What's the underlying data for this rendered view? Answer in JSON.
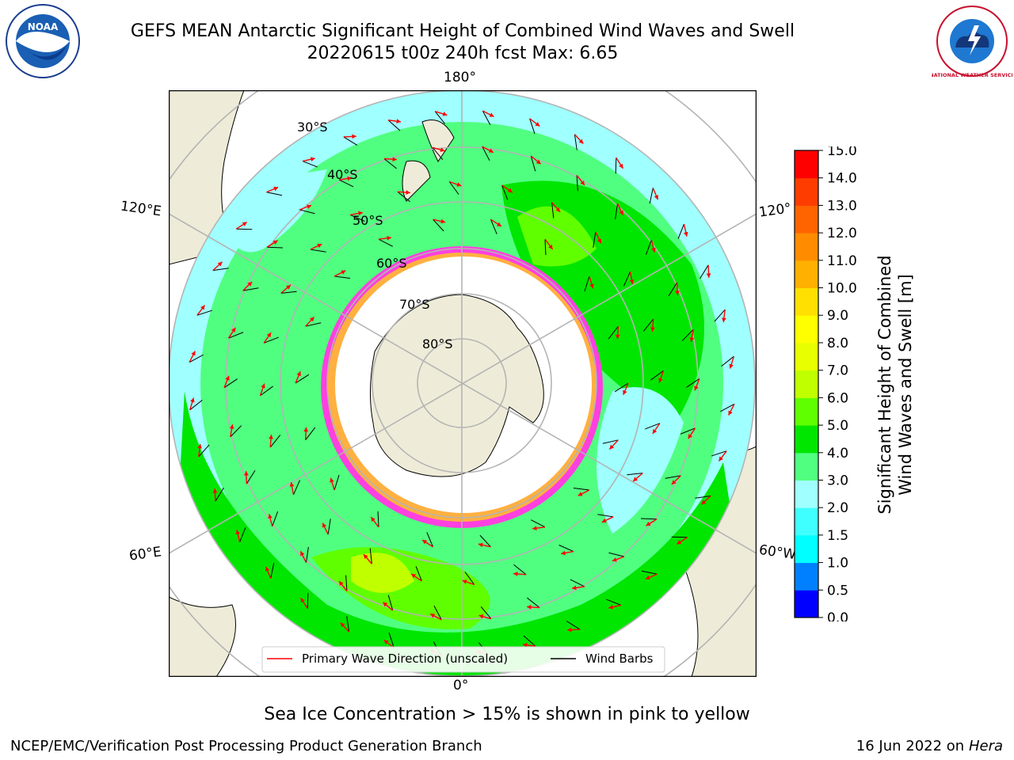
{
  "header": {
    "title_line1": "GEFS MEAN Antarctic Significant Height of Combined Wind Waves and Swell",
    "title_line2": "20220615 t00z 240h fcst   Max: 6.65"
  },
  "logos": {
    "left": "NOAA",
    "right": "NATIONAL WEATHER SERVICE"
  },
  "map": {
    "projection": "south polar stereographic",
    "longitude_labels": {
      "top": "180°",
      "bottom": "0°",
      "left_upper": "120°E",
      "left_lower": "60°E",
      "right_upper": "120°",
      "right_lower": "60°W"
    },
    "latitude_labels": [
      "30°S",
      "40°S",
      "50°S",
      "60°S",
      "70°S",
      "80°S"
    ],
    "legend": {
      "wave_label": "Primary Wave Direction (unscaled)",
      "barb_label": "Wind Barbs",
      "wave_color": "#ff0000",
      "barb_color": "#000000"
    },
    "colors": {
      "land": "#eeecd8",
      "ice": "#ffffff",
      "grid": "#b4b4b4",
      "coast": "#000000"
    }
  },
  "colorbar": {
    "title_line1": "Significant Height of Combined",
    "title_line2": "Wind Waves and Swell [m]",
    "ticks": [
      "0.0",
      "0.5",
      "1.0",
      "1.5",
      "2.0",
      "3.0",
      "4.0",
      "5.0",
      "6.0",
      "7.0",
      "8.0",
      "9.0",
      "10.0",
      "11.0",
      "12.0",
      "13.0",
      "14.0",
      "15.0"
    ],
    "colors": [
      "#0000ff",
      "#0080ff",
      "#00ffff",
      "#40ffff",
      "#a0ffff",
      "#50ff80",
      "#00e600",
      "#60ff00",
      "#c0ff00",
      "#e8ff00",
      "#ffff00",
      "#ffe000",
      "#ffb000",
      "#ff8c00",
      "#ff6400",
      "#ff3c00",
      "#ff0000"
    ]
  },
  "footer": {
    "note": "Sea Ice Concentration > 15% is shown in pink to yellow",
    "credit": "NCEP/EMC/Verification Post Processing Product Generation Branch",
    "date": "16 Jun 2022 on",
    "host": "Hera"
  }
}
